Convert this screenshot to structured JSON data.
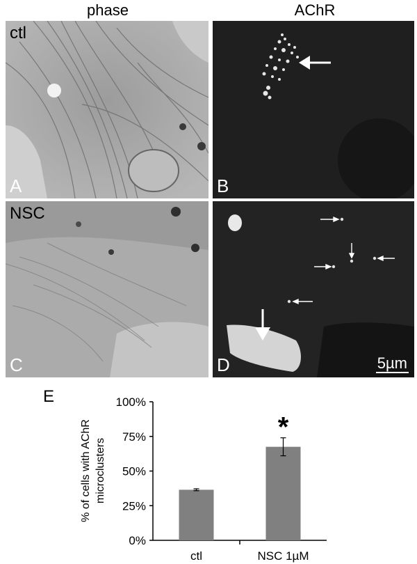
{
  "columns": {
    "left": "phase",
    "right": "AChR"
  },
  "panels": [
    {
      "letter": "A",
      "condition": "ctl"
    },
    {
      "letter": "B"
    },
    {
      "letter": "C",
      "condition": "NSC"
    },
    {
      "letter": "D"
    }
  ],
  "scale_bar": "5µm",
  "chart_letter": "E",
  "chart_data": {
    "type": "bar",
    "categories": [
      "ctl",
      "NSC 1µM"
    ],
    "values": [
      36.5,
      67.5
    ],
    "errors": [
      0.7,
      6.5
    ],
    "ylabel_lines": [
      "% of cells with AChR",
      "microclusters"
    ],
    "ylim": [
      0,
      100
    ],
    "yticks": [
      "0%",
      "25%",
      "50%",
      "75%",
      "100%"
    ],
    "significance": [
      "",
      "*"
    ],
    "bar_color": "#808080",
    "grid": false
  }
}
